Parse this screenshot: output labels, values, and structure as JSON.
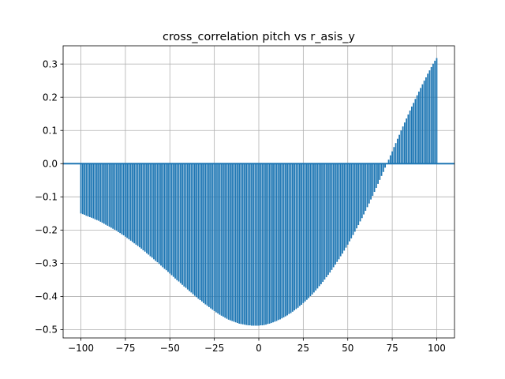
{
  "chart_data": {
    "type": "bar",
    "title": "cross_correlation pitch vs r_asis_y",
    "xlabel": "",
    "ylabel": "",
    "xlim": [
      -110,
      110
    ],
    "ylim": [
      -0.525,
      0.355
    ],
    "grid": true,
    "bar_color": "#1f77b4",
    "zero_line": true,
    "x_ticks": [
      -100,
      -75,
      -50,
      -25,
      0,
      25,
      50,
      75,
      100
    ],
    "x_tick_labels": [
      "−100",
      "−75",
      "−50",
      "−25",
      "0",
      "25",
      "50",
      "75",
      "100"
    ],
    "y_ticks": [
      -0.5,
      -0.4,
      -0.3,
      -0.2,
      -0.1,
      0.0,
      0.1,
      0.2,
      0.3
    ],
    "y_tick_labels": [
      "−0.5",
      "−0.4",
      "−0.3",
      "−0.2",
      "−0.1",
      "0.0",
      "0.1",
      "0.2",
      "0.3"
    ],
    "x_start": -100,
    "x_step": 1,
    "values": [
      -0.15,
      -0.152,
      -0.154,
      -0.157,
      -0.159,
      -0.161,
      -0.163,
      -0.165,
      -0.168,
      -0.17,
      -0.172,
      -0.175,
      -0.178,
      -0.181,
      -0.184,
      -0.187,
      -0.19,
      -0.193,
      -0.196,
      -0.199,
      -0.202,
      -0.206,
      -0.209,
      -0.213,
      -0.216,
      -0.22,
      -0.224,
      -0.228,
      -0.232,
      -0.236,
      -0.24,
      -0.244,
      -0.248,
      -0.252,
      -0.256,
      -0.261,
      -0.265,
      -0.27,
      -0.274,
      -0.279,
      -0.283,
      -0.288,
      -0.293,
      -0.297,
      -0.302,
      -0.307,
      -0.312,
      -0.317,
      -0.321,
      -0.326,
      -0.331,
      -0.336,
      -0.341,
      -0.346,
      -0.351,
      -0.355,
      -0.36,
      -0.365,
      -0.37,
      -0.374,
      -0.379,
      -0.384,
      -0.388,
      -0.393,
      -0.398,
      -0.402,
      -0.407,
      -0.411,
      -0.415,
      -0.42,
      -0.424,
      -0.428,
      -0.432,
      -0.436,
      -0.44,
      -0.444,
      -0.448,
      -0.451,
      -0.455,
      -0.458,
      -0.461,
      -0.464,
      -0.467,
      -0.47,
      -0.472,
      -0.474,
      -0.476,
      -0.478,
      -0.48,
      -0.482,
      -0.483,
      -0.484,
      -0.485,
      -0.486,
      -0.487,
      -0.487,
      -0.488,
      -0.488,
      -0.488,
      -0.488,
      -0.488,
      -0.487,
      -0.487,
      -0.486,
      -0.485,
      -0.483,
      -0.482,
      -0.48,
      -0.478,
      -0.476,
      -0.474,
      -0.471,
      -0.469,
      -0.466,
      -0.463,
      -0.46,
      -0.457,
      -0.453,
      -0.45,
      -0.446,
      -0.442,
      -0.438,
      -0.434,
      -0.429,
      -0.425,
      -0.42,
      -0.415,
      -0.41,
      -0.405,
      -0.399,
      -0.394,
      -0.388,
      -0.382,
      -0.376,
      -0.369,
      -0.363,
      -0.356,
      -0.349,
      -0.342,
      -0.335,
      -0.328,
      -0.32,
      -0.312,
      -0.304,
      -0.296,
      -0.288,
      -0.279,
      -0.271,
      -0.262,
      -0.253,
      -0.244,
      -0.234,
      -0.225,
      -0.215,
      -0.205,
      -0.195,
      -0.185,
      -0.174,
      -0.164,
      -0.153,
      -0.142,
      -0.131,
      -0.12,
      -0.108,
      -0.097,
      -0.085,
      -0.073,
      -0.061,
      -0.049,
      -0.037,
      -0.025,
      -0.012,
      0.0,
      0.012,
      0.025,
      0.037,
      0.05,
      0.062,
      0.075,
      0.087,
      0.1,
      0.112,
      0.124,
      0.136,
      0.148,
      0.16,
      0.172,
      0.183,
      0.195,
      0.206,
      0.217,
      0.228,
      0.239,
      0.25,
      0.26,
      0.271,
      0.281,
      0.291,
      0.301,
      0.31,
      0.318
    ]
  }
}
